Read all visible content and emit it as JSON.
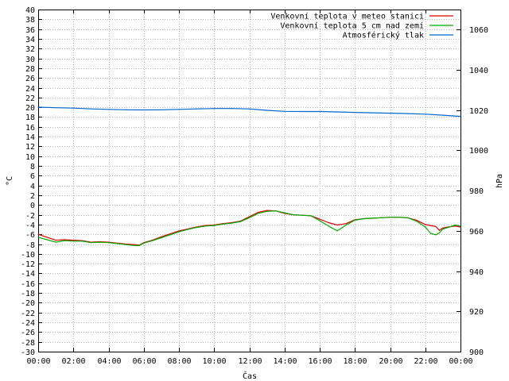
{
  "chart_data": {
    "type": "line",
    "xlabel": "Čas",
    "ylabel_left": "°C",
    "ylabel_right": "hPa",
    "x_ticks": [
      "00:00",
      "02:00",
      "04:00",
      "06:00",
      "08:00",
      "10:00",
      "12:00",
      "14:00",
      "16:00",
      "18:00",
      "20:00",
      "22:00",
      "00:00"
    ],
    "x_hours": [
      0,
      2,
      4,
      6,
      8,
      10,
      12,
      14,
      16,
      18,
      20,
      22,
      24
    ],
    "ylim_left": [
      -30,
      40
    ],
    "ylim_right": [
      900,
      1070
    ],
    "y_ticks_left": [
      40,
      38,
      36,
      34,
      32,
      30,
      28,
      26,
      24,
      22,
      20,
      18,
      16,
      14,
      12,
      10,
      8,
      6,
      4,
      2,
      0,
      -2,
      -4,
      -6,
      -8,
      -10,
      -12,
      -14,
      -16,
      -18,
      -20,
      -22,
      -24,
      -26,
      -28,
      -30
    ],
    "y_tick_labels_left": [
      "40",
      "38",
      "36",
      "34",
      "32",
      "30",
      "28",
      "26",
      "24",
      "22",
      "20",
      "18",
      "16",
      "14",
      "12",
      "10",
      "8",
      "6",
      "4",
      "2",
      "0",
      "-2",
      "-4",
      "-6",
      "-8",
      "-10",
      "-12",
      "-14",
      "-16",
      "-18",
      "-20",
      "-22",
      "-24",
      "-26",
      "-28",
      "-30"
    ],
    "y_ticks_right": [
      900,
      920,
      940,
      960,
      980,
      1000,
      1020,
      1040,
      1060
    ],
    "y_tick_labels_right": [
      "900",
      "920",
      "940",
      "960",
      "980",
      "1000",
      "1020",
      "1040",
      "1060"
    ],
    "grid": true,
    "legend_position": "top-right",
    "series": [
      {
        "name": "Venkovní teplota v meteo stanici",
        "axis": "left",
        "color": "#dd0000",
        "x": [
          0,
          0.5,
          1,
          1.5,
          2,
          2.5,
          3,
          3.5,
          4,
          4.5,
          5,
          5.5,
          5.75,
          6,
          6.5,
          7,
          7.5,
          8,
          8.5,
          9,
          9.5,
          10,
          10.5,
          11,
          11.5,
          12,
          12.5,
          13,
          13.5,
          14,
          14.5,
          15,
          15.5,
          16,
          16.5,
          17,
          17.5,
          18,
          18.5,
          19,
          19.5,
          20,
          20.5,
          21,
          21.5,
          22,
          22.3,
          22.6,
          22.8,
          23,
          23.3,
          23.7,
          24
        ],
        "y": [
          -6,
          -6.6,
          -7.2,
          -7.1,
          -7.2,
          -7.3,
          -7.6,
          -7.5,
          -7.6,
          -7.8,
          -8,
          -8.1,
          -8.2,
          -7.7,
          -7.2,
          -6.5,
          -5.9,
          -5.3,
          -4.9,
          -4.5,
          -4.2,
          -4.1,
          -3.8,
          -3.6,
          -3.3,
          -2.4,
          -1.5,
          -1.1,
          -1.2,
          -1.7,
          -2,
          -2.1,
          -2.2,
          -2.9,
          -3.6,
          -4.1,
          -3.8,
          -3,
          -2.8,
          -2.7,
          -2.6,
          -2.5,
          -2.5,
          -2.6,
          -3.1,
          -4,
          -4.2,
          -4.4,
          -5.2,
          -4.7,
          -4.5,
          -4.3,
          -4.5
        ]
      },
      {
        "name": "Venkovní teplota 5 cm nad zemí",
        "axis": "left",
        "color": "#00aa00",
        "x": [
          0,
          0.5,
          1,
          1.5,
          2,
          2.5,
          3,
          3.5,
          4,
          4.5,
          5,
          5.5,
          5.75,
          6,
          6.5,
          7,
          7.5,
          8,
          8.5,
          9,
          9.5,
          10,
          10.5,
          11,
          11.5,
          12,
          12.5,
          13,
          13.5,
          14,
          14.5,
          15,
          15.5,
          16,
          16.5,
          17,
          17.5,
          18,
          18.5,
          19,
          19.5,
          20,
          20.5,
          21,
          21.5,
          22,
          22.3,
          22.6,
          22.8,
          23,
          23.3,
          23.7,
          24
        ],
        "y": [
          -6.6,
          -7.1,
          -7.6,
          -7.3,
          -7.4,
          -7.4,
          -7.7,
          -7.6,
          -7.7,
          -7.9,
          -8.1,
          -8.3,
          -8.3,
          -7.8,
          -7.3,
          -6.7,
          -6.1,
          -5.5,
          -5,
          -4.6,
          -4.3,
          -4.2,
          -3.9,
          -3.7,
          -3.4,
          -2.6,
          -1.7,
          -1.3,
          -1.2,
          -1.6,
          -2,
          -2.1,
          -2.2,
          -3.2,
          -4.3,
          -5.3,
          -4.1,
          -3.1,
          -2.8,
          -2.7,
          -2.6,
          -2.5,
          -2.5,
          -2.6,
          -3.3,
          -4.5,
          -5.8,
          -6.1,
          -5.7,
          -4.9,
          -4.6,
          -4.1,
          -4.3
        ]
      },
      {
        "name": "Atmosférický tlak",
        "axis": "right",
        "color": "#0066cc",
        "x": [
          0,
          1,
          2,
          3,
          4,
          5,
          6,
          7,
          8,
          9,
          10,
          11,
          12,
          13,
          14,
          15,
          16,
          17,
          18,
          19,
          20,
          21,
          22,
          23,
          24
        ],
        "y": [
          1021.5,
          1021.2,
          1021,
          1020.6,
          1020.4,
          1020.2,
          1020.1,
          1020.2,
          1020.4,
          1020.6,
          1020.8,
          1020.8,
          1020.6,
          1019.9,
          1019.4,
          1019.3,
          1019.3,
          1019.1,
          1018.9,
          1018.7,
          1018.5,
          1018.3,
          1018,
          1017.5,
          1016.9
        ]
      }
    ]
  }
}
